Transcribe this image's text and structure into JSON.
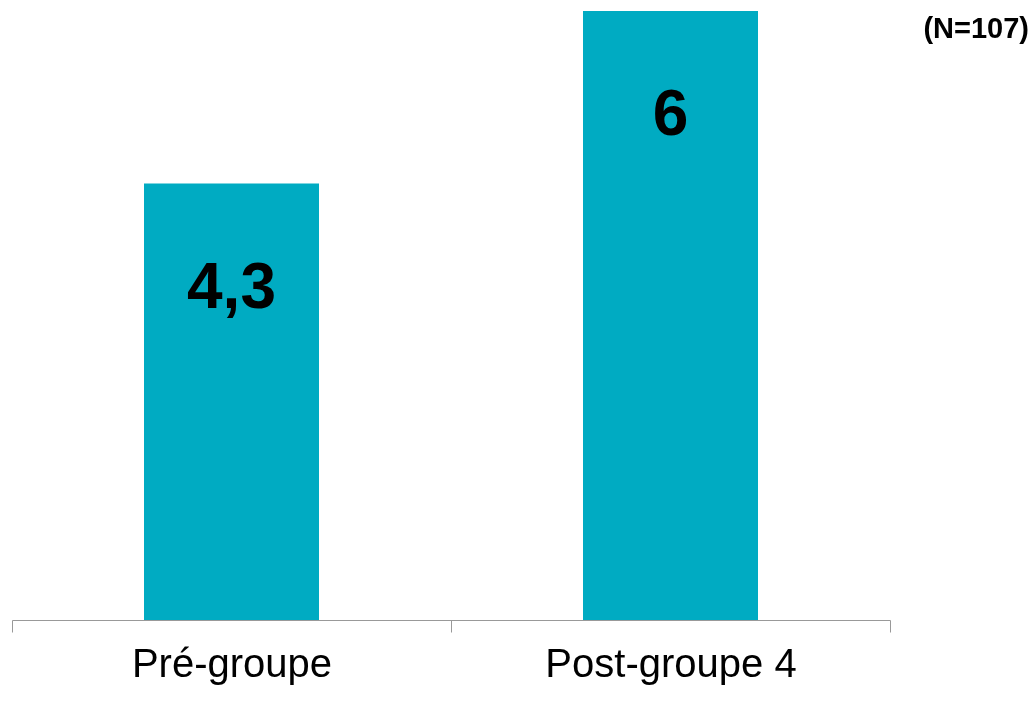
{
  "chart_data": {
    "type": "bar",
    "categories": [
      "Pré-groupe",
      "Post-groupe 4"
    ],
    "values": [
      4.3,
      6
    ],
    "value_labels": [
      "4,3",
      "6"
    ],
    "color": "#00abc2",
    "ylim": [
      0,
      6
    ],
    "tick_labels": "x",
    "grid": false,
    "annotations": [
      "(N=107)"
    ]
  }
}
